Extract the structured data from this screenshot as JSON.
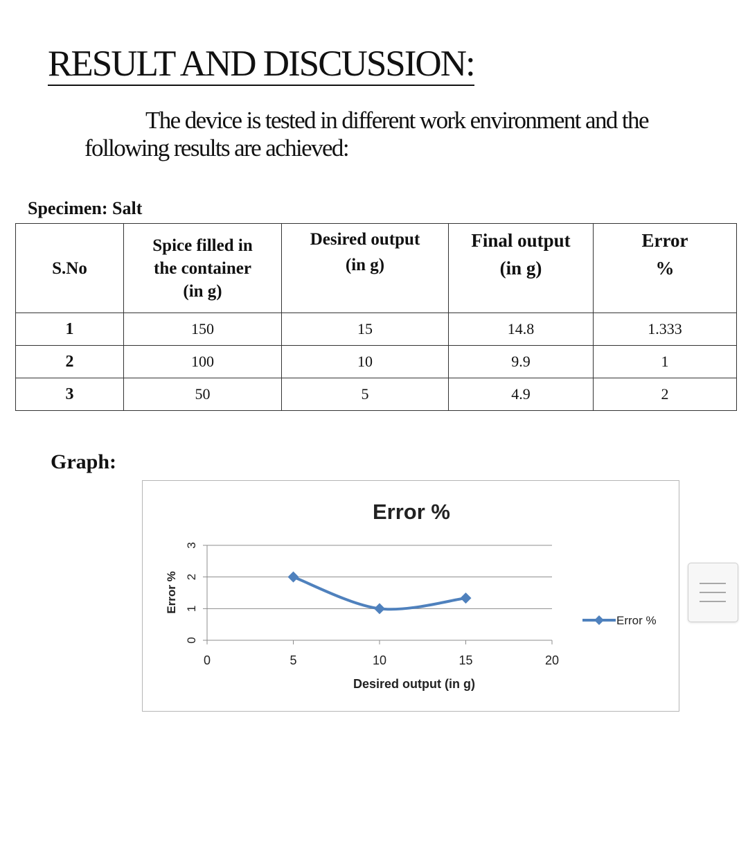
{
  "heading": "RESULT AND DISCUSSION:",
  "intro": "The device is tested in different work environment and the following results are achieved:",
  "specimen": "Specimen: Salt",
  "table": {
    "headers": [
      [
        "S.No"
      ],
      [
        "Spice filled in",
        "the container",
        "(in g)"
      ],
      [
        "Desired output",
        "(in g)"
      ],
      [
        "Final output",
        "(in g)"
      ],
      [
        "Error",
        "%"
      ]
    ],
    "rows": [
      [
        "1",
        "150",
        "15",
        "14.8",
        "1.333"
      ],
      [
        "2",
        "100",
        "10",
        "9.9",
        "1"
      ],
      [
        "3",
        "50",
        "5",
        "4.9",
        "2"
      ]
    ]
  },
  "graph_label": "Graph:",
  "chart_data": {
    "type": "line",
    "title": "Error %",
    "xlabel": "Desired output (in g)",
    "ylabel": "Error %",
    "xlim": [
      0,
      20
    ],
    "ylim": [
      0,
      3
    ],
    "xticks": [
      "0",
      "5",
      "10",
      "15",
      "20"
    ],
    "yticks": [
      "0",
      "1",
      "2",
      "3"
    ],
    "grid": "horizontal",
    "legend": "right",
    "smooth": true,
    "series": [
      {
        "name": "Error %",
        "color": "#4f81bd",
        "marker": "diamond",
        "x": [
          5,
          10,
          15
        ],
        "y": [
          2,
          1,
          1.333
        ]
      }
    ]
  },
  "side_handle": {
    "icon": "menu-lines-icon"
  }
}
